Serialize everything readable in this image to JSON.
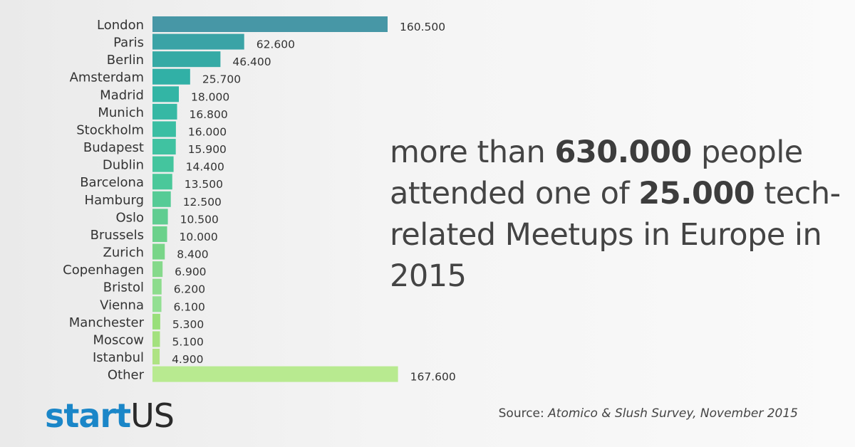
{
  "chart_data": {
    "type": "bar",
    "orientation": "horizontal",
    "categories": [
      "London",
      "Paris",
      "Berlin",
      "Amsterdam",
      "Madrid",
      "Munich",
      "Stockholm",
      "Budapest",
      "Dublin",
      "Barcelona",
      "Hamburg",
      "Oslo",
      "Brussels",
      "Zurich",
      "Copenhagen",
      "Bristol",
      "Vienna",
      "Manchester",
      "Moscow",
      "Istanbul",
      "Other"
    ],
    "values": [
      160500,
      62600,
      46400,
      25700,
      18000,
      16800,
      16000,
      15900,
      14400,
      13500,
      12500,
      10500,
      10000,
      8400,
      6900,
      6200,
      6100,
      5300,
      5100,
      4900,
      167600
    ],
    "value_labels": [
      "160.500",
      "62.600",
      "46.400",
      "25.700",
      "18.000",
      "16.800",
      "16.000",
      "15.900",
      "14.400",
      "13.500",
      "12.500",
      "10.500",
      "10.000",
      "8.400",
      "6.900",
      "6.200",
      "6.100",
      "5.300",
      "5.100",
      "4.900",
      "167.600"
    ],
    "colors": [
      "#4797a6",
      "#3aa3a6",
      "#35aaa5",
      "#31b0a6",
      "#33b5a5",
      "#36b8a4",
      "#3abea3",
      "#40c2a1",
      "#44c59e",
      "#4ac89a",
      "#55cb96",
      "#60cd91",
      "#6bd18b",
      "#78d588",
      "#85d98b",
      "#8ddc8d",
      "#92df92",
      "#99df7a",
      "#a3e17e",
      "#aee383",
      "#b8ea90"
    ],
    "grid": false,
    "legend": "none"
  },
  "headline": {
    "part1": "more than ",
    "bold1": "630.000",
    "part2": " people attended one of ",
    "bold2": "25.000",
    "part3": " tech-related Meetups in Europe in 2015"
  },
  "source": {
    "prefix": "Source:",
    "text": "Atomico & Slush Survey, November 2015"
  },
  "logo": {
    "part1": "start",
    "part2": "US"
  }
}
